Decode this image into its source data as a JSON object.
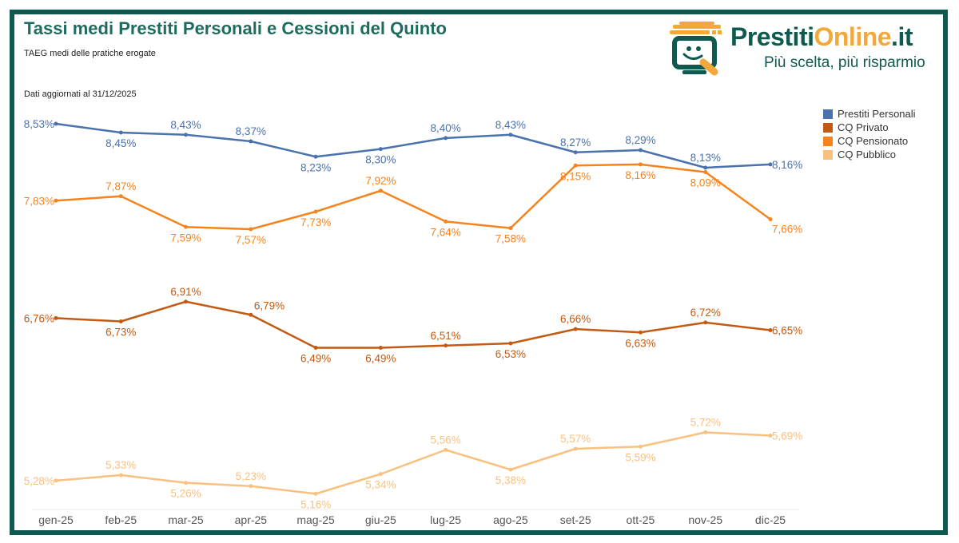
{
  "header": {
    "title": "Tassi medi Prestiti Personali e Cessioni del Quinto",
    "subtitle": "TAEG medi delle pratiche erogate",
    "updated": "Dati aggiornati al 31/12/2025"
  },
  "logo": {
    "brand_main": "Prestiti",
    "brand_accent": "Online",
    "brand_suffix": ".it",
    "tagline": "Più scelta, più risparmio",
    "icon": "smiling-monitor-icon"
  },
  "colors": {
    "frame": "#0f5a4e",
    "title": "#1f6b60",
    "prestiti_personali": "#4a72ad",
    "cq_privato": "#c45a11",
    "cq_pensionato": "#f5841f",
    "cq_pubblico": "#f8c17f"
  },
  "chart_data": {
    "type": "line",
    "title": "Tassi medi Prestiti Personali e Cessioni del Quinto",
    "subtitle": "TAEG medi delle pratiche erogate",
    "xlabel": "",
    "ylabel": "",
    "categories": [
      "gen-25",
      "feb-25",
      "mar-25",
      "apr-25",
      "mag-25",
      "giu-25",
      "lug-25",
      "ago-25",
      "set-25",
      "ott-25",
      "nov-25",
      "dic-25"
    ],
    "ylim": [
      5.0,
      8.6
    ],
    "grid": false,
    "legend_position": "right",
    "series": [
      {
        "name": "Prestiti Personali",
        "color": "#4a72ad",
        "values": [
          8.53,
          8.45,
          8.43,
          8.37,
          8.23,
          8.3,
          8.4,
          8.43,
          8.27,
          8.29,
          8.13,
          8.16
        ],
        "labels": [
          "8,53%",
          "8,45%",
          "8,43%",
          "8,37%",
          "8,23%",
          "8,30%",
          "8,40%",
          "8,43%",
          "8,27%",
          "8,29%",
          "8,13%",
          "8,16%"
        ],
        "label_pos": [
          "left",
          "below",
          "above",
          "above",
          "below",
          "below",
          "above",
          "above",
          "above",
          "above",
          "above",
          "right"
        ]
      },
      {
        "name": "CQ Privato",
        "color": "#c45a11",
        "values": [
          6.76,
          6.73,
          6.91,
          6.79,
          6.49,
          6.49,
          6.51,
          6.53,
          6.66,
          6.63,
          6.72,
          6.65
        ],
        "labels": [
          "6,76%",
          "6,73%",
          "6,91%",
          "6,79%",
          "6,49%",
          "6,49%",
          "6,51%",
          "6,53%",
          "6,66%",
          "6,63%",
          "6,72%",
          "6,65%"
        ],
        "label_pos": [
          "left",
          "below",
          "above",
          "above-right",
          "below",
          "below",
          "above",
          "below",
          "above",
          "below",
          "above",
          "right"
        ]
      },
      {
        "name": "CQ Pensionato",
        "color": "#f5841f",
        "values": [
          7.83,
          7.87,
          7.59,
          7.57,
          7.73,
          7.92,
          7.64,
          7.58,
          8.15,
          8.16,
          8.09,
          7.66
        ],
        "labels": [
          "7,83%",
          "7,87%",
          "7,59%",
          "7,57%",
          "7,73%",
          "7,92%",
          "7,64%",
          "7,58%",
          "8,15%",
          "8,16%",
          "8,09%",
          "7,66%"
        ],
        "label_pos": [
          "left",
          "above",
          "below",
          "below",
          "below",
          "above",
          "below",
          "below",
          "below",
          "below",
          "below",
          "below-right"
        ]
      },
      {
        "name": "CQ Pubblico",
        "color": "#f8c17f",
        "values": [
          5.28,
          5.33,
          5.26,
          5.23,
          5.16,
          5.34,
          5.56,
          5.38,
          5.57,
          5.59,
          5.72,
          5.69
        ],
        "labels": [
          "5,28%",
          "5,33%",
          "5,26%",
          "5,23%",
          "5,16%",
          "5,34%",
          "5,56%",
          "5,38%",
          "5,57%",
          "5,59%",
          "5,72%",
          "5,69%"
        ],
        "label_pos": [
          "left",
          "above",
          "below",
          "above",
          "below",
          "below",
          "above",
          "below",
          "above",
          "below",
          "above",
          "right"
        ]
      }
    ]
  }
}
